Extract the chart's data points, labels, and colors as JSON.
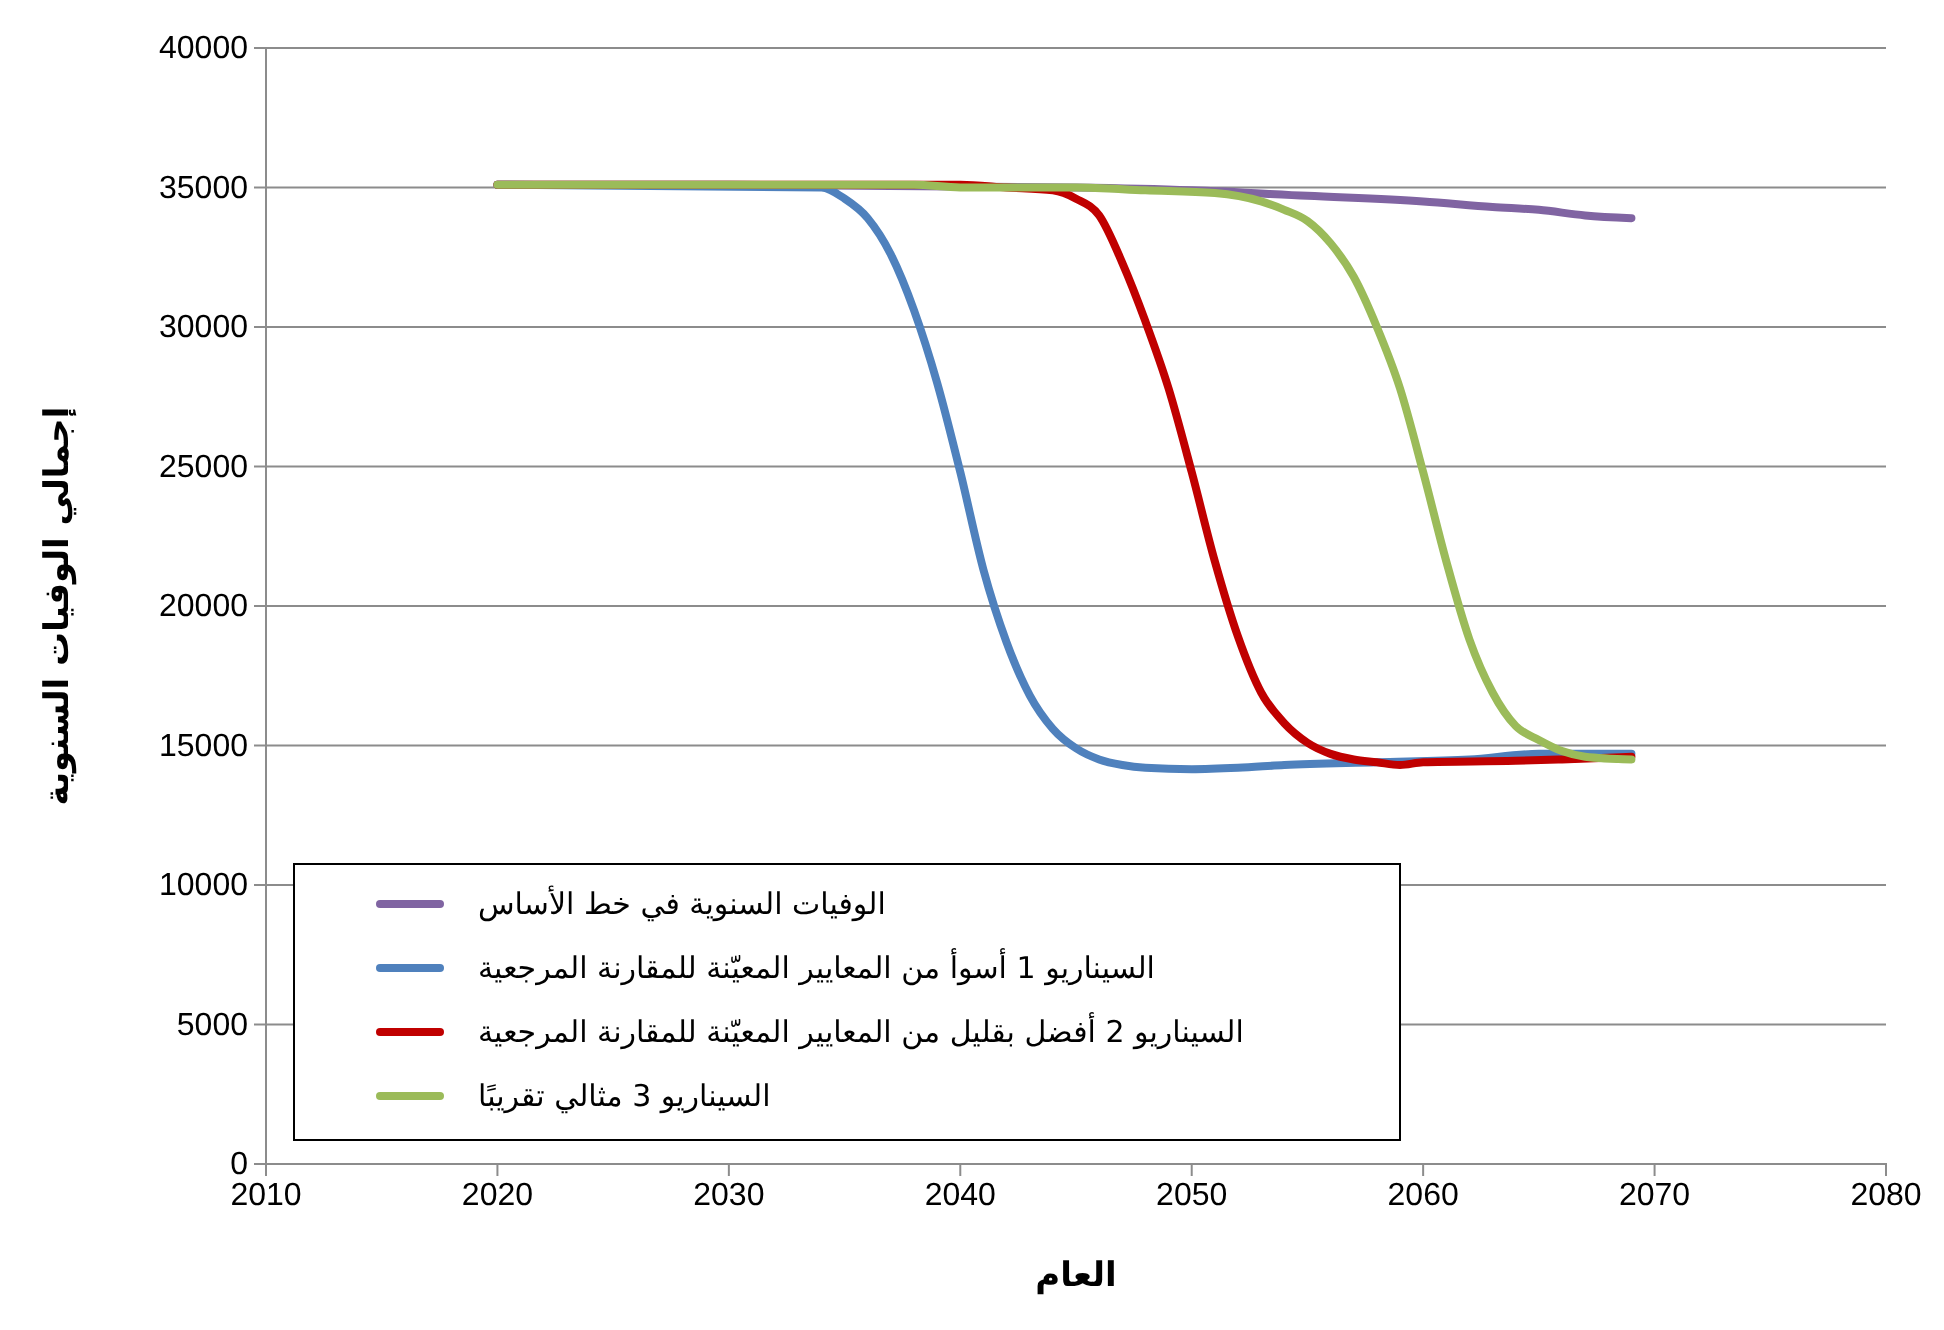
{
  "chart_data": {
    "type": "line",
    "xlabel": "العام",
    "ylabel": "إجمالي الوفيات السنوية",
    "xlim": [
      2010,
      2080
    ],
    "xticks": [
      2010,
      2020,
      2030,
      2040,
      2050,
      2060,
      2070,
      2080
    ],
    "ylim": [
      0,
      40000
    ],
    "yticks": [
      0,
      5000,
      10000,
      15000,
      20000,
      25000,
      30000,
      35000,
      40000
    ],
    "grid": "y",
    "legend": "bottom left",
    "marker": "none",
    "line_style": "solid",
    "series": [
      {
        "name": "الوفيات السنوية في خط الأساس",
        "color": "#8064a2",
        "x": [
          2020,
          2030,
          2045,
          2050,
          2055,
          2060,
          2063,
          2065,
          2067,
          2069
        ],
        "values": [
          35100,
          35100,
          35000,
          34900,
          34700,
          34500,
          34300,
          34200,
          34000,
          33900
        ]
      },
      {
        "name": "السيناريو 1 أسوأ من المعايير المعيّنة للمقارنة المرجعية",
        "color": "#4f81bd",
        "x": [
          2020,
          2034,
          2035,
          2036,
          2037,
          2038,
          2039,
          2040,
          2041,
          2042,
          2043,
          2044,
          2045,
          2046,
          2047,
          2048,
          2050,
          2052,
          2054,
          2058,
          2062,
          2065,
          2069
        ],
        "values": [
          35100,
          35000,
          34600,
          33900,
          32600,
          30600,
          28000,
          24800,
          21300,
          18700,
          16800,
          15600,
          14900,
          14500,
          14300,
          14200,
          14150,
          14200,
          14300,
          14400,
          14500,
          14700,
          14700
        ]
      },
      {
        "name": "السيناريو 2 أفضل بقليل من المعايير المعيّنة للمقارنة المرجعية",
        "color": "#c00000",
        "x": [
          2020,
          2040,
          2042,
          2044,
          2045,
          2046,
          2047,
          2048,
          2049,
          2050,
          2051,
          2052,
          2053,
          2054,
          2055,
          2056,
          2057,
          2058,
          2059,
          2060,
          2064,
          2066,
          2069
        ],
        "values": [
          35100,
          35100,
          35000,
          34900,
          34600,
          34000,
          32300,
          30200,
          27800,
          24800,
          21600,
          18900,
          16900,
          15800,
          15100,
          14700,
          14500,
          14400,
          14300,
          14400,
          14450,
          14500,
          14600
        ]
      },
      {
        "name": "السيناريو 3 مثالي تقريبًا",
        "color": "#9bbb59",
        "x": [
          2020,
          2030,
          2038,
          2040,
          2045,
          2048,
          2051,
          2053,
          2054,
          2055,
          2056,
          2057,
          2058,
          2059,
          2060,
          2061,
          2062,
          2063,
          2064,
          2065,
          2066,
          2067,
          2069
        ],
        "values": [
          35100,
          35100,
          35100,
          35000,
          35000,
          34900,
          34800,
          34500,
          34200,
          33800,
          33000,
          31800,
          30000,
          27800,
          24800,
          21600,
          18800,
          16900,
          15700,
          15200,
          14800,
          14600,
          14500
        ]
      }
    ]
  }
}
